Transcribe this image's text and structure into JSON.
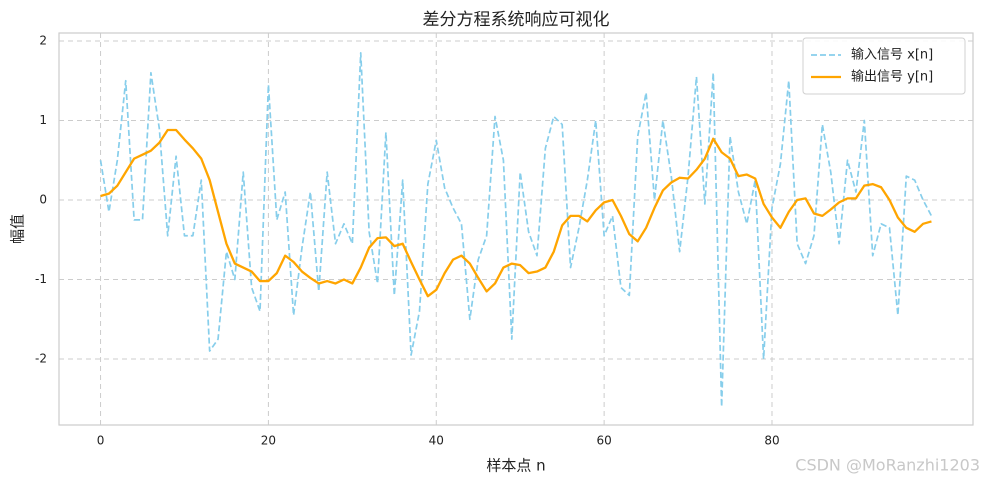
{
  "chart_data": {
    "type": "line",
    "title": "差分方程系统响应可视化",
    "x_label": "样本点 n",
    "y_label": "幅值",
    "watermark": "CSDN @MoRanzhi1203",
    "x": [
      0,
      1,
      2,
      3,
      4,
      5,
      6,
      7,
      8,
      9,
      10,
      11,
      12,
      13,
      14,
      15,
      16,
      17,
      18,
      19,
      20,
      21,
      22,
      23,
      24,
      25,
      26,
      27,
      28,
      29,
      30,
      31,
      32,
      33,
      34,
      35,
      36,
      37,
      38,
      39,
      40,
      41,
      42,
      43,
      44,
      45,
      46,
      47,
      48,
      49,
      50,
      51,
      52,
      53,
      54,
      55,
      56,
      57,
      58,
      59,
      60,
      61,
      62,
      63,
      64,
      65,
      66,
      67,
      68,
      69,
      70,
      71,
      72,
      73,
      74,
      75,
      76,
      77,
      78,
      79,
      80,
      81,
      82,
      83,
      84,
      85,
      86,
      87,
      88,
      89,
      90,
      91,
      92,
      93,
      94,
      95,
      96,
      97,
      98,
      99
    ],
    "series": [
      {
        "name": "输入信号 x[n]",
        "color": "#87ceeb",
        "linestyle": "dashed",
        "values": [
          0.5,
          -0.15,
          0.5,
          1.5,
          -0.25,
          -0.25,
          1.6,
          0.9,
          -0.45,
          0.55,
          -0.45,
          -0.45,
          0.25,
          -1.9,
          -1.75,
          -0.65,
          -1.0,
          0.35,
          -1.1,
          -1.4,
          1.45,
          -0.25,
          0.1,
          -1.45,
          -0.6,
          0.1,
          -1.15,
          0.35,
          -0.55,
          -0.3,
          -0.55,
          1.85,
          -0.4,
          -1.05,
          0.85,
          -1.2,
          0.25,
          -1.95,
          -1.4,
          0.2,
          0.75,
          0.15,
          -0.1,
          -0.3,
          -1.5,
          -0.75,
          -0.45,
          1.05,
          0.5,
          -1.75,
          0.35,
          -0.4,
          -0.7,
          0.65,
          1.05,
          0.95,
          -0.85,
          -0.35,
          0.25,
          1.0,
          -0.45,
          -0.2,
          -1.1,
          -1.2,
          0.8,
          1.35,
          0.0,
          1.0,
          0.3,
          -0.65,
          0.3,
          1.55,
          -0.05,
          1.6,
          -2.6,
          0.8,
          0.1,
          -0.3,
          0.25,
          -2.0,
          -0.1,
          0.45,
          1.5,
          -0.55,
          -0.8,
          -0.45,
          0.95,
          0.35,
          -0.55,
          0.5,
          0.1,
          1.0,
          -0.7,
          -0.3,
          -0.35,
          -1.45,
          0.3,
          0.25,
          0.0,
          -0.2
        ]
      },
      {
        "name": "输出信号 y[n]",
        "color": "#ffa500",
        "linestyle": "solid",
        "values": [
          0.05,
          0.08,
          0.18,
          0.35,
          0.52,
          0.57,
          0.62,
          0.72,
          0.88,
          0.88,
          0.76,
          0.65,
          0.52,
          0.25,
          -0.15,
          -0.55,
          -0.8,
          -0.85,
          -0.9,
          -1.02,
          -1.02,
          -0.92,
          -0.7,
          -0.78,
          -0.9,
          -0.98,
          -1.05,
          -1.02,
          -1.05,
          -1.0,
          -1.05,
          -0.85,
          -0.6,
          -0.48,
          -0.47,
          -0.58,
          -0.55,
          -0.78,
          -1.0,
          -1.21,
          -1.13,
          -0.92,
          -0.75,
          -0.7,
          -0.8,
          -0.98,
          -1.15,
          -1.05,
          -0.85,
          -0.8,
          -0.82,
          -0.92,
          -0.9,
          -0.85,
          -0.65,
          -0.32,
          -0.2,
          -0.2,
          -0.27,
          -0.13,
          -0.03,
          0.0,
          -0.2,
          -0.43,
          -0.52,
          -0.35,
          -0.1,
          0.12,
          0.22,
          0.28,
          0.27,
          0.38,
          0.52,
          0.77,
          0.6,
          0.52,
          0.3,
          0.32,
          0.27,
          -0.05,
          -0.22,
          -0.35,
          -0.15,
          0.0,
          0.02,
          -0.17,
          -0.2,
          -0.12,
          -0.03,
          0.02,
          0.02,
          0.18,
          0.2,
          0.16,
          0.0,
          -0.22,
          -0.35,
          -0.4,
          -0.3,
          -0.27
        ]
      }
    ],
    "xlim": [
      -4.95,
      103.95
    ],
    "ylim": [
      -2.83,
      2.1
    ],
    "xticks": [
      0,
      20,
      40,
      60,
      80
    ],
    "yticks": [
      -2,
      -1,
      0,
      1,
      2
    ],
    "grid": true,
    "legend": "upper right"
  }
}
